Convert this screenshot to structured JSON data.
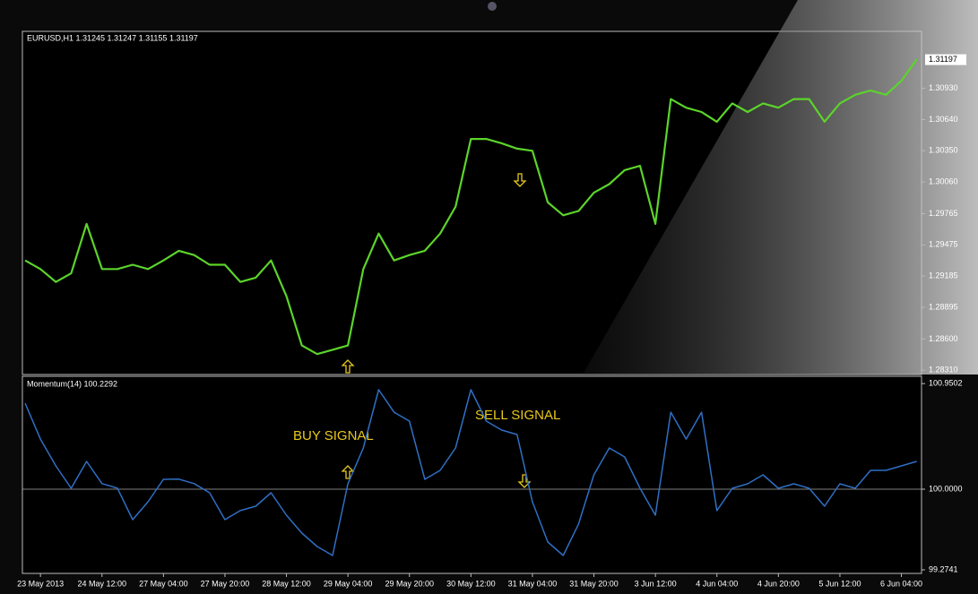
{
  "chart_data": [
    {
      "type": "line",
      "title": "EURUSD,H1  1.31245 1.31247 1.31155 1.31197",
      "color": "#5cd42a",
      "categories": [
        null,
        "23 May 2013",
        null,
        null,
        null,
        "24 May 12:00",
        null,
        null,
        null,
        "27 May 04:00",
        null,
        null,
        null,
        "27 May 20:00",
        null,
        null,
        null,
        "28 May 12:00",
        null,
        null,
        null,
        "29 May 04:00",
        null,
        null,
        null,
        "29 May 20:00",
        null,
        null,
        null,
        "30 May 12:00",
        null,
        null,
        null,
        "31 May 04:00",
        null,
        null,
        null,
        "31 May 20:00",
        null,
        null,
        null,
        "3 Jun 12:00",
        null,
        null,
        null,
        "4 Jun 04:00",
        null,
        null,
        null,
        "4 Jun 20:00",
        null,
        null,
        null,
        "5 Jun 12:00",
        null,
        null,
        null,
        "6 Jun 04:00",
        null
      ],
      "values": [
        1.2933,
        1.2925,
        1.2913,
        1.2921,
        1.2967,
        1.2925,
        1.2925,
        1.2929,
        1.2925,
        1.2933,
        1.2942,
        1.2938,
        1.2929,
        1.2929,
        1.2913,
        1.2917,
        1.2933,
        1.29,
        1.2854,
        1.2846,
        1.285,
        1.2854,
        1.2925,
        1.2958,
        1.2933,
        1.2938,
        1.2942,
        1.2958,
        1.2983,
        1.3046,
        1.3046,
        1.3042,
        1.3037,
        1.3035,
        1.2987,
        1.2975,
        1.2979,
        1.2996,
        1.3004,
        1.3017,
        1.3021,
        1.2967,
        1.3083,
        1.3075,
        1.3071,
        1.3062,
        1.3079,
        1.3071,
        1.3079,
        1.3075,
        1.3083,
        1.3083,
        1.3062,
        1.3079,
        1.3087,
        1.3091,
        1.3087,
        1.31,
        1.312
      ],
      "ylim": [
        1.2827,
        1.3146
      ],
      "yticks": [
        {
          "value": 1.2831,
          "label": "1.28310"
        },
        {
          "value": 1.286,
          "label": "1.28600"
        },
        {
          "value": 1.28895,
          "label": "1.28895"
        },
        {
          "value": 1.29185,
          "label": "1.29185"
        },
        {
          "value": 1.29475,
          "label": "1.29475"
        },
        {
          "value": 1.29765,
          "label": "1.29765"
        },
        {
          "value": 1.3006,
          "label": "1.30060"
        },
        {
          "value": 1.3035,
          "label": "1.30350"
        },
        {
          "value": 1.3064,
          "label": "1.30640"
        },
        {
          "value": 1.3093,
          "label": "1.30930"
        }
      ],
      "last_price": 1.31197
    },
    {
      "type": "line",
      "title": "Momentum(14) 100.2292",
      "color": "#2f6fc4",
      "values": [
        100.774,
        100.451,
        100.21,
        100.008,
        100.25,
        100.05,
        100.01,
        99.726,
        99.887,
        100.089,
        100.09,
        100.05,
        99.968,
        99.726,
        99.807,
        99.847,
        99.968,
        99.766,
        99.605,
        99.484,
        99.403,
        100.048,
        100.371,
        100.895,
        100.693,
        100.613,
        100.089,
        100.169,
        100.371,
        100.895,
        100.613,
        100.532,
        100.492,
        99.887,
        99.524,
        99.403,
        99.686,
        100.129,
        100.371,
        100.29,
        100.008,
        99.766,
        100.693,
        100.451,
        100.693,
        99.807,
        100.008,
        100.048,
        100.129,
        100.008,
        100.048,
        100.008,
        99.847,
        100.048,
        100.008,
        100.169,
        100.169,
        100.21,
        100.25
      ],
      "ylim": [
        99.242,
        101.016
      ],
      "yticks": [
        99.2741,
        {
          "value": 100,
          "label": "100.0000"
        },
        100.9502
      ],
      "levels": [
        100
      ],
      "annotations": [
        "BUY SIGNAL",
        "SELL SIGNAL"
      ]
    }
  ]
}
